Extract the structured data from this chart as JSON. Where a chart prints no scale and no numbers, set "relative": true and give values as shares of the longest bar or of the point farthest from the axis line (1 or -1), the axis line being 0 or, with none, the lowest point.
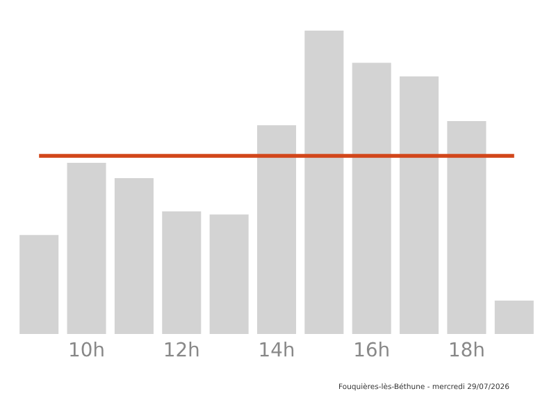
{
  "chart_data": {
    "type": "bar",
    "relative": true,
    "categories": [
      null,
      "10h",
      null,
      "12h",
      null,
      "14h",
      null,
      "16h",
      null,
      "18h",
      null
    ],
    "values": [
      0.326,
      0.564,
      0.514,
      0.404,
      0.394,
      0.688,
      1,
      0.894,
      0.849,
      0.702,
      0.11
    ],
    "color": "#d3d3d3",
    "ref_lines": [
      {
        "axis": "y",
        "value": 0.587,
        "color": "#d2461a",
        "line_style": "solid"
      }
    ],
    "annotations": [
      "Fouquières-lès-Béthune - mercredi 29/07/2026"
    ],
    "grid": false,
    "legend": false
  }
}
